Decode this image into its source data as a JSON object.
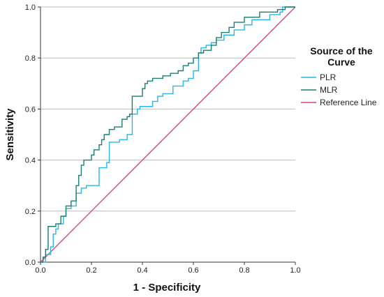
{
  "chart_data": {
    "type": "line",
    "title": "",
    "xlabel": "1 - Specificity",
    "ylabel": "Sensitivity",
    "xlim": [
      0,
      1
    ],
    "ylim": [
      0,
      1
    ],
    "xticks": [
      "0.0",
      "0.2",
      "0.4",
      "0.6",
      "0.8",
      "1.0"
    ],
    "yticks": [
      "0.0",
      "0.2",
      "0.4",
      "0.6",
      "0.8",
      "1.0"
    ],
    "grid": "horizontal",
    "legend": {
      "title": "Source of the Curve",
      "placement": "right"
    },
    "series": [
      {
        "name": "PLR",
        "color": "#29b6e6",
        "points": [
          [
            0,
            0
          ],
          [
            0.02,
            0
          ],
          [
            0.02,
            0.03
          ],
          [
            0.04,
            0.03
          ],
          [
            0.04,
            0.06
          ],
          [
            0.05,
            0.06
          ],
          [
            0.05,
            0.11
          ],
          [
            0.06,
            0.11
          ],
          [
            0.06,
            0.13
          ],
          [
            0.07,
            0.13
          ],
          [
            0.07,
            0.15
          ],
          [
            0.09,
            0.15
          ],
          [
            0.09,
            0.18
          ],
          [
            0.1,
            0.18
          ],
          [
            0.1,
            0.21
          ],
          [
            0.12,
            0.21
          ],
          [
            0.12,
            0.22
          ],
          [
            0.14,
            0.22
          ],
          [
            0.14,
            0.27
          ],
          [
            0.16,
            0.27
          ],
          [
            0.16,
            0.29
          ],
          [
            0.18,
            0.29
          ],
          [
            0.18,
            0.3
          ],
          [
            0.23,
            0.3
          ],
          [
            0.23,
            0.37
          ],
          [
            0.26,
            0.37
          ],
          [
            0.26,
            0.39
          ],
          [
            0.27,
            0.39
          ],
          [
            0.27,
            0.47
          ],
          [
            0.31,
            0.47
          ],
          [
            0.31,
            0.48
          ],
          [
            0.34,
            0.48
          ],
          [
            0.34,
            0.5
          ],
          [
            0.36,
            0.5
          ],
          [
            0.36,
            0.58
          ],
          [
            0.38,
            0.58
          ],
          [
            0.38,
            0.6
          ],
          [
            0.39,
            0.6
          ],
          [
            0.39,
            0.61
          ],
          [
            0.44,
            0.61
          ],
          [
            0.44,
            0.63
          ],
          [
            0.46,
            0.63
          ],
          [
            0.46,
            0.65
          ],
          [
            0.48,
            0.65
          ],
          [
            0.48,
            0.66
          ],
          [
            0.52,
            0.66
          ],
          [
            0.52,
            0.69
          ],
          [
            0.56,
            0.69
          ],
          [
            0.56,
            0.71
          ],
          [
            0.58,
            0.71
          ],
          [
            0.58,
            0.72
          ],
          [
            0.6,
            0.72
          ],
          [
            0.6,
            0.75
          ],
          [
            0.62,
            0.75
          ],
          [
            0.62,
            0.82
          ],
          [
            0.63,
            0.82
          ],
          [
            0.63,
            0.84
          ],
          [
            0.65,
            0.84
          ],
          [
            0.65,
            0.85
          ],
          [
            0.67,
            0.85
          ],
          [
            0.67,
            0.86
          ],
          [
            0.69,
            0.86
          ],
          [
            0.69,
            0.87
          ],
          [
            0.72,
            0.87
          ],
          [
            0.72,
            0.89
          ],
          [
            0.76,
            0.89
          ],
          [
            0.76,
            0.91
          ],
          [
            0.8,
            0.91
          ],
          [
            0.8,
            0.93
          ],
          [
            0.83,
            0.93
          ],
          [
            0.83,
            0.95
          ],
          [
            0.9,
            0.95
          ],
          [
            0.9,
            0.97
          ],
          [
            0.94,
            0.97
          ],
          [
            0.94,
            0.98
          ],
          [
            0.95,
            0.98
          ],
          [
            0.95,
            1.0
          ],
          [
            1.0,
            1.0
          ]
        ]
      },
      {
        "name": "MLR",
        "color": "#17806f",
        "points": [
          [
            0,
            0
          ],
          [
            0.01,
            0
          ],
          [
            0.01,
            0.02
          ],
          [
            0.02,
            0.02
          ],
          [
            0.02,
            0.05
          ],
          [
            0.03,
            0.05
          ],
          [
            0.03,
            0.14
          ],
          [
            0.06,
            0.14
          ],
          [
            0.06,
            0.15
          ],
          [
            0.08,
            0.15
          ],
          [
            0.08,
            0.18
          ],
          [
            0.1,
            0.18
          ],
          [
            0.1,
            0.22
          ],
          [
            0.12,
            0.22
          ],
          [
            0.12,
            0.24
          ],
          [
            0.14,
            0.24
          ],
          [
            0.14,
            0.3
          ],
          [
            0.15,
            0.3
          ],
          [
            0.15,
            0.34
          ],
          [
            0.16,
            0.34
          ],
          [
            0.16,
            0.38
          ],
          [
            0.17,
            0.38
          ],
          [
            0.17,
            0.4
          ],
          [
            0.2,
            0.4
          ],
          [
            0.2,
            0.42
          ],
          [
            0.21,
            0.42
          ],
          [
            0.21,
            0.44
          ],
          [
            0.23,
            0.44
          ],
          [
            0.23,
            0.46
          ],
          [
            0.24,
            0.46
          ],
          [
            0.24,
            0.48
          ],
          [
            0.25,
            0.48
          ],
          [
            0.25,
            0.5
          ],
          [
            0.27,
            0.5
          ],
          [
            0.27,
            0.52
          ],
          [
            0.29,
            0.52
          ],
          [
            0.29,
            0.53
          ],
          [
            0.32,
            0.53
          ],
          [
            0.32,
            0.56
          ],
          [
            0.34,
            0.56
          ],
          [
            0.34,
            0.57
          ],
          [
            0.35,
            0.57
          ],
          [
            0.35,
            0.58
          ],
          [
            0.36,
            0.58
          ],
          [
            0.36,
            0.65
          ],
          [
            0.4,
            0.65
          ],
          [
            0.4,
            0.68
          ],
          [
            0.41,
            0.68
          ],
          [
            0.41,
            0.7
          ],
          [
            0.42,
            0.7
          ],
          [
            0.42,
            0.71
          ],
          [
            0.44,
            0.71
          ],
          [
            0.44,
            0.72
          ],
          [
            0.48,
            0.72
          ],
          [
            0.48,
            0.73
          ],
          [
            0.51,
            0.73
          ],
          [
            0.51,
            0.74
          ],
          [
            0.54,
            0.74
          ],
          [
            0.54,
            0.75
          ],
          [
            0.56,
            0.75
          ],
          [
            0.56,
            0.77
          ],
          [
            0.58,
            0.77
          ],
          [
            0.58,
            0.78
          ],
          [
            0.6,
            0.78
          ],
          [
            0.6,
            0.8
          ],
          [
            0.62,
            0.8
          ],
          [
            0.62,
            0.82
          ],
          [
            0.64,
            0.82
          ],
          [
            0.64,
            0.83
          ],
          [
            0.67,
            0.83
          ],
          [
            0.67,
            0.85
          ],
          [
            0.69,
            0.85
          ],
          [
            0.69,
            0.88
          ],
          [
            0.71,
            0.88
          ],
          [
            0.71,
            0.9
          ],
          [
            0.74,
            0.9
          ],
          [
            0.74,
            0.92
          ],
          [
            0.76,
            0.92
          ],
          [
            0.76,
            0.94
          ],
          [
            0.8,
            0.94
          ],
          [
            0.8,
            0.96
          ],
          [
            0.86,
            0.96
          ],
          [
            0.86,
            0.98
          ],
          [
            0.93,
            0.98
          ],
          [
            0.93,
            0.99
          ],
          [
            0.96,
            0.99
          ],
          [
            0.96,
            1.0
          ],
          [
            1.0,
            1.0
          ]
        ]
      },
      {
        "name": "Reference Line",
        "color": "#d4477a",
        "points": [
          [
            0,
            0
          ],
          [
            1,
            1
          ]
        ]
      }
    ]
  }
}
